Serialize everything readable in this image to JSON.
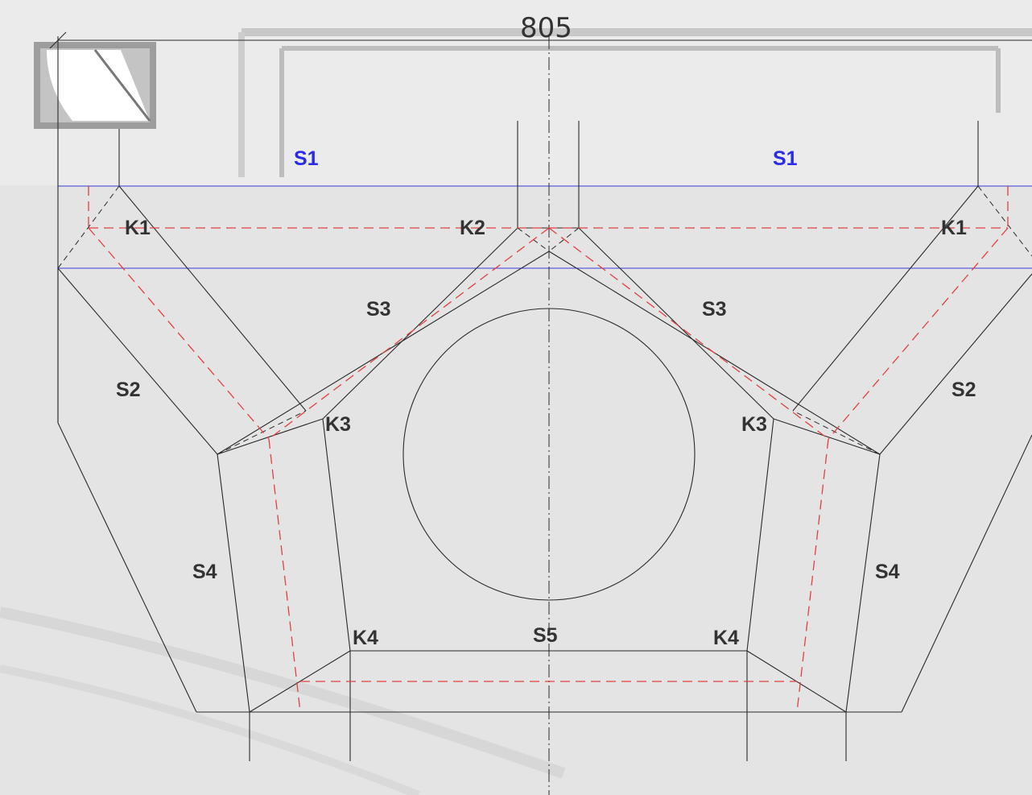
{
  "drawing": {
    "dimension": "805",
    "labels": {
      "s1_left": "S1",
      "s1_right": "S1",
      "k1_left": "K1",
      "k2": "K2",
      "k1_right": "K1",
      "s3_left": "S3",
      "s3_right": "S3",
      "s2_left": "S2",
      "s2_right": "S2",
      "k3_left": "K3",
      "k3_right": "K3",
      "s4_left": "S4",
      "s4_right": "S4",
      "k4_left": "K4",
      "s5": "S5",
      "k4_right": "K4"
    },
    "colors": {
      "lines": "#2a2a2a",
      "hidden_lines": "#e04040",
      "slab_lines": "#3b3bd8",
      "slab_labels": "#2a2ae8",
      "background": "#e4e4e4"
    }
  }
}
